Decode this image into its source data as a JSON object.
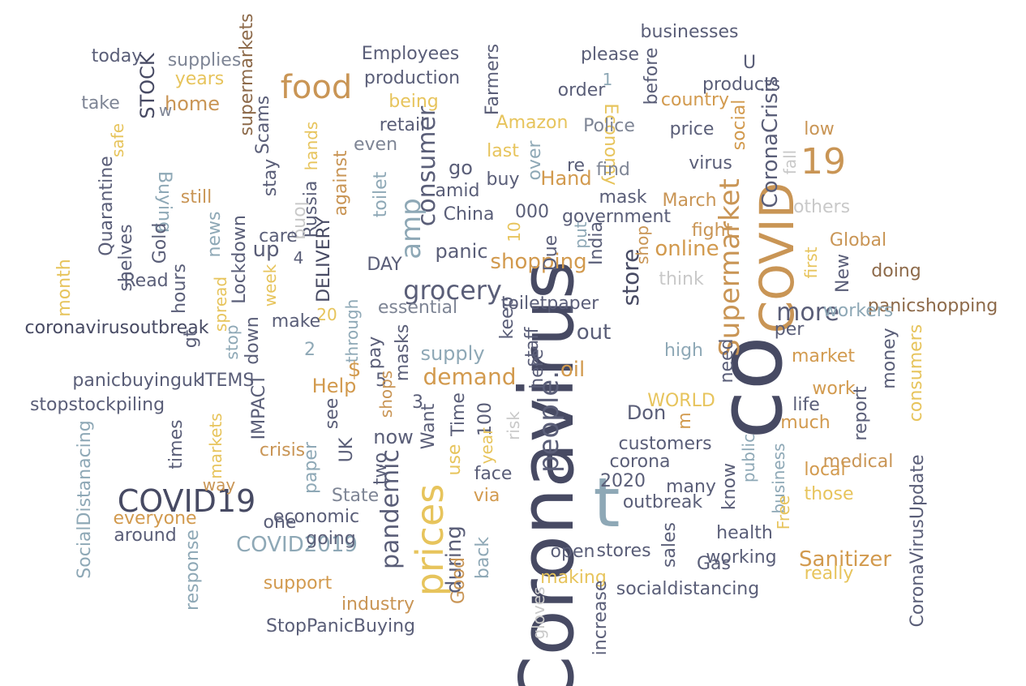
{
  "colors": {
    "dark": "#474a63",
    "slate": "#5a5e78",
    "gray": "#7e8595",
    "blue": "#8ea8b6",
    "tan": "#c99555",
    "orange": "#d29a4e",
    "gold": "#e7c45c",
    "brown": "#8d6a4a",
    "light": "#c9c9c9"
  },
  "words": [
    {
      "text": "Coronavirus",
      "color": "dark"
    },
    {
      "text": "co",
      "color": "dark"
    },
    {
      "text": "t",
      "color": "blue"
    },
    {
      "text": "COVID",
      "color": "tan"
    },
    {
      "text": "prices",
      "color": "gold"
    },
    {
      "text": "COVID19",
      "color": "dark"
    },
    {
      "text": "food",
      "color": "tan"
    },
    {
      "text": "19",
      "color": "tan"
    },
    {
      "text": "Supermarket",
      "color": "tan"
    },
    {
      "text": "grocery",
      "color": "slate"
    },
    {
      "text": "people.",
      "color": "slate"
    },
    {
      "text": "consumer",
      "color": "slate"
    },
    {
      "text": "pandemic",
      "color": "slate"
    },
    {
      "text": "amp",
      "color": "blue"
    },
    {
      "text": "shopping",
      "color": "orange"
    },
    {
      "text": "demand",
      "color": "orange"
    },
    {
      "text": "online",
      "color": "orange"
    },
    {
      "text": "store",
      "color": "dark"
    },
    {
      "text": "more",
      "color": "slate"
    },
    {
      "text": "COVID2019",
      "color": "blue"
    },
    {
      "text": "Sanitizer",
      "color": "orange"
    },
    {
      "text": "CoronaCrisis",
      "color": "slate"
    },
    {
      "text": "coronavirusoutbreak",
      "color": "dark"
    },
    {
      "text": "supermarkets",
      "color": "brown"
    },
    {
      "text": "Employees",
      "color": "slate"
    },
    {
      "text": "production",
      "color": "slate"
    },
    {
      "text": "Farmers",
      "color": "slate"
    },
    {
      "text": "businesses",
      "color": "slate"
    },
    {
      "text": "please",
      "color": "slate"
    },
    {
      "text": "before",
      "color": "slate"
    },
    {
      "text": "U",
      "color": "slate"
    },
    {
      "text": "products",
      "color": "slate"
    },
    {
      "text": "today",
      "color": "slate"
    },
    {
      "text": "supplies",
      "color": "gray"
    },
    {
      "text": "STOCK",
      "color": "dark"
    },
    {
      "text": "years",
      "color": "gold"
    },
    {
      "text": "home",
      "color": "tan"
    },
    {
      "text": "take",
      "color": "gray"
    },
    {
      "text": "w",
      "color": "gray"
    },
    {
      "text": "Scams",
      "color": "slate"
    },
    {
      "text": "being",
      "color": "gold"
    },
    {
      "text": "retail",
      "color": "slate"
    },
    {
      "text": "even",
      "color": "gray"
    },
    {
      "text": "Amazon",
      "color": "gold"
    },
    {
      "text": "Economy",
      "color": "gold"
    },
    {
      "text": "order",
      "color": "slate"
    },
    {
      "text": "1",
      "color": "blue"
    },
    {
      "text": "Police",
      "color": "gray"
    },
    {
      "text": "price",
      "color": "slate"
    },
    {
      "text": "country",
      "color": "orange"
    },
    {
      "text": "social",
      "color": "orange"
    },
    {
      "text": "low",
      "color": "tan"
    },
    {
      "text": "fall",
      "color": "light"
    },
    {
      "text": "safe",
      "color": "gold"
    },
    {
      "text": "hands",
      "color": "gold"
    },
    {
      "text": "stay",
      "color": "slate"
    },
    {
      "text": "Russia",
      "color": "slate"
    },
    {
      "text": "against",
      "color": "tan"
    },
    {
      "text": "toilet",
      "color": "blue"
    },
    {
      "text": "go",
      "color": "slate"
    },
    {
      "text": "amid",
      "color": "slate"
    },
    {
      "text": "China",
      "color": "slate"
    },
    {
      "text": "last",
      "color": "gold"
    },
    {
      "text": "over",
      "color": "blue"
    },
    {
      "text": "re",
      "color": "slate"
    },
    {
      "text": "find",
      "color": "gray"
    },
    {
      "text": "virus",
      "color": "slate"
    },
    {
      "text": "Hand",
      "color": "orange"
    },
    {
      "text": "buy",
      "color": "slate"
    },
    {
      "text": "000",
      "color": "slate"
    },
    {
      "text": "mask",
      "color": "slate"
    },
    {
      "text": "government",
      "color": "slate"
    },
    {
      "text": "March",
      "color": "tan"
    },
    {
      "text": "others",
      "color": "light"
    },
    {
      "text": "Quarantine",
      "color": "slate"
    },
    {
      "text": "Buying",
      "color": "blue"
    },
    {
      "text": "still",
      "color": "tan"
    },
    {
      "text": "shelves",
      "color": "slate"
    },
    {
      "text": "Gold",
      "color": "slate"
    },
    {
      "text": "news",
      "color": "blue"
    },
    {
      "text": "long",
      "color": "light"
    },
    {
      "text": "care",
      "color": "slate"
    },
    {
      "text": "up",
      "color": "slate"
    },
    {
      "text": "Lockdown",
      "color": "slate"
    },
    {
      "text": "4",
      "color": "slate"
    },
    {
      "text": "DELIVERY",
      "color": "dark"
    },
    {
      "text": "10",
      "color": "gold"
    },
    {
      "text": "Due",
      "color": "slate"
    },
    {
      "text": "put",
      "color": "blue"
    },
    {
      "text": "India",
      "color": "slate"
    },
    {
      "text": "fight",
      "color": "tan"
    },
    {
      "text": "Global",
      "color": "tan"
    },
    {
      "text": "shop",
      "color": "tan"
    },
    {
      "text": "first",
      "color": "gold"
    },
    {
      "text": "doing",
      "color": "brown"
    },
    {
      "text": "New",
      "color": "slate"
    },
    {
      "text": "month",
      "color": "gold"
    },
    {
      "text": "Read",
      "color": "slate"
    },
    {
      "text": "hours",
      "color": "slate"
    },
    {
      "text": "week",
      "color": "gold"
    },
    {
      "text": "panic",
      "color": "slate"
    },
    {
      "text": "DAY",
      "color": "slate"
    },
    {
      "text": "toiletpaper",
      "color": "slate"
    },
    {
      "text": "think",
      "color": "light"
    },
    {
      "text": "panicshopping",
      "color": "brown"
    },
    {
      "text": "workers",
      "color": "blue"
    },
    {
      "text": "spread",
      "color": "gold"
    },
    {
      "text": "gt",
      "color": "slate"
    },
    {
      "text": "stop",
      "color": "blue"
    },
    {
      "text": "down",
      "color": "slate"
    },
    {
      "text": "20",
      "color": "gold"
    },
    {
      "text": "make",
      "color": "slate"
    },
    {
      "text": "through",
      "color": "blue"
    },
    {
      "text": "essential",
      "color": "gray"
    },
    {
      "text": "keep",
      "color": "slate"
    },
    {
      "text": "out",
      "color": "slate"
    },
    {
      "text": "per",
      "color": "slate"
    },
    {
      "text": "2",
      "color": "blue"
    },
    {
      "text": "pay",
      "color": "slate"
    },
    {
      "text": "$",
      "color": "orange"
    },
    {
      "text": "5",
      "color": "slate"
    },
    {
      "text": "masks",
      "color": "slate"
    },
    {
      "text": "supply",
      "color": "blue"
    },
    {
      "text": "staff",
      "color": "slate"
    },
    {
      "text": "oil",
      "color": "orange"
    },
    {
      "text": "high",
      "color": "blue"
    },
    {
      "text": "need",
      "color": "slate"
    },
    {
      "text": "market",
      "color": "orange"
    },
    {
      "text": "money",
      "color": "slate"
    },
    {
      "text": "consumers",
      "color": "gold"
    },
    {
      "text": "panicbuyinguk",
      "color": "slate"
    },
    {
      "text": "ITEMS",
      "color": "slate"
    },
    {
      "text": "stopstockpiling",
      "color": "slate"
    },
    {
      "text": "IMPACT",
      "color": "slate"
    },
    {
      "text": "Help",
      "color": "orange"
    },
    {
      "text": "see",
      "color": "slate"
    },
    {
      "text": "shops",
      "color": "tan"
    },
    {
      "text": "here",
      "color": "slate"
    },
    {
      "text": "WORLD",
      "color": "gold"
    },
    {
      "text": "Don",
      "color": "slate"
    },
    {
      "text": "m",
      "color": "orange"
    },
    {
      "text": "work",
      "color": "orange"
    },
    {
      "text": "life",
      "color": "slate"
    },
    {
      "text": "report",
      "color": "slate"
    },
    {
      "text": "much",
      "color": "orange"
    },
    {
      "text": "times",
      "color": "slate"
    },
    {
      "text": "markets",
      "color": "gold"
    },
    {
      "text": "crisis",
      "color": "tan"
    },
    {
      "text": "3",
      "color": "slate"
    },
    {
      "text": "Want",
      "color": "slate"
    },
    {
      "text": "Time",
      "color": "slate"
    },
    {
      "text": "100",
      "color": "slate"
    },
    {
      "text": "risk",
      "color": "light"
    },
    {
      "text": "customers",
      "color": "slate"
    },
    {
      "text": "corona",
      "color": "slate"
    },
    {
      "text": "year",
      "color": "gold"
    },
    {
      "text": "use",
      "color": "gold"
    },
    {
      "text": "now",
      "color": "slate"
    },
    {
      "text": "two",
      "color": "slate"
    },
    {
      "text": "UK",
      "color": "slate"
    },
    {
      "text": "paper",
      "color": "blue"
    },
    {
      "text": "SocialDistanacing",
      "color": "blue"
    },
    {
      "text": "medical",
      "color": "tan"
    },
    {
      "text": "local",
      "color": "orange"
    },
    {
      "text": "those",
      "color": "gold"
    },
    {
      "text": "public",
      "color": "blue"
    },
    {
      "text": "business",
      "color": "blue"
    },
    {
      "text": "Free",
      "color": "gold"
    },
    {
      "text": "CoronaVirusUpdate",
      "color": "slate"
    },
    {
      "text": "way",
      "color": "tan"
    },
    {
      "text": "everyone",
      "color": "orange"
    },
    {
      "text": "around",
      "color": "slate"
    },
    {
      "text": "economic",
      "color": "slate"
    },
    {
      "text": "one",
      "color": "slate"
    },
    {
      "text": "going",
      "color": "slate"
    },
    {
      "text": "State",
      "color": "gray"
    },
    {
      "text": "face",
      "color": "slate"
    },
    {
      "text": "via",
      "color": "orange"
    },
    {
      "text": "2020",
      "color": "slate"
    },
    {
      "text": "outbreak",
      "color": "slate"
    },
    {
      "text": "many",
      "color": "slate"
    },
    {
      "text": "know",
      "color": "slate"
    },
    {
      "text": "health",
      "color": "slate"
    },
    {
      "text": "working",
      "color": "slate"
    },
    {
      "text": "Gas",
      "color": "slate"
    },
    {
      "text": "sales",
      "color": "slate"
    },
    {
      "text": "stores",
      "color": "slate"
    },
    {
      "text": "open",
      "color": "slate"
    },
    {
      "text": "socialdistancing",
      "color": "slate"
    },
    {
      "text": "really",
      "color": "gold"
    },
    {
      "text": "response",
      "color": "blue"
    },
    {
      "text": "support",
      "color": "orange"
    },
    {
      "text": "industry",
      "color": "tan"
    },
    {
      "text": "StopPanicBuying",
      "color": "slate"
    },
    {
      "text": "during",
      "color": "slate"
    },
    {
      "text": "Good",
      "color": "tan"
    },
    {
      "text": "back",
      "color": "blue"
    },
    {
      "text": "making",
      "color": "gold"
    },
    {
      "text": "gloves",
      "color": "light"
    },
    {
      "text": "increase",
      "color": "slate"
    }
  ]
}
